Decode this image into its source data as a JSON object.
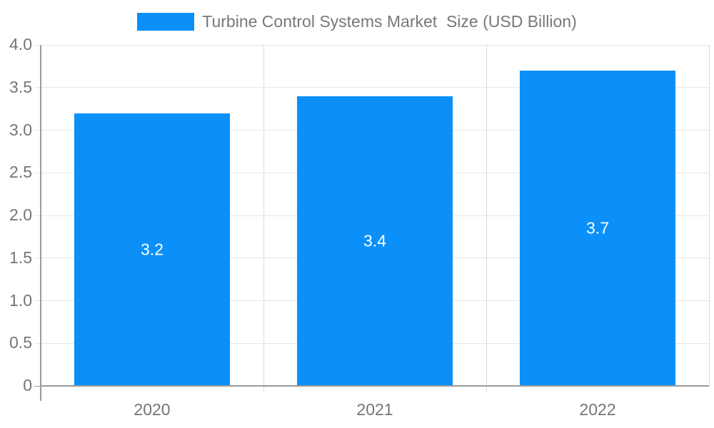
{
  "legend": {
    "label": "Turbine Control Systems Market  Size (USD Billion)"
  },
  "chart_data": {
    "type": "bar",
    "title": "Turbine Control Systems Market  Size (USD Billion)",
    "categories": [
      "2020",
      "2021",
      "2022"
    ],
    "values": [
      3.2,
      3.4,
      3.7
    ],
    "value_labels": [
      "3.2",
      "3.4",
      "3.7"
    ],
    "xlabel": "",
    "ylabel": "",
    "ylim": [
      0,
      4.0
    ],
    "ytick_step": 0.5,
    "ytick_labels": [
      "0",
      "0.5",
      "1.0",
      "1.5",
      "2.0",
      "2.5",
      "3.0",
      "3.5",
      "4.0"
    ],
    "grid": true,
    "legend_position": "top"
  },
  "colors": {
    "bar": "#0a90f8",
    "grid": "#e6e6e6",
    "separator": "#dcdcdc",
    "axis": "#9a9a9a",
    "tick_text": "#757575",
    "legend_text": "#787878",
    "bar_label": "#ffffff",
    "background": "#ffffff"
  }
}
